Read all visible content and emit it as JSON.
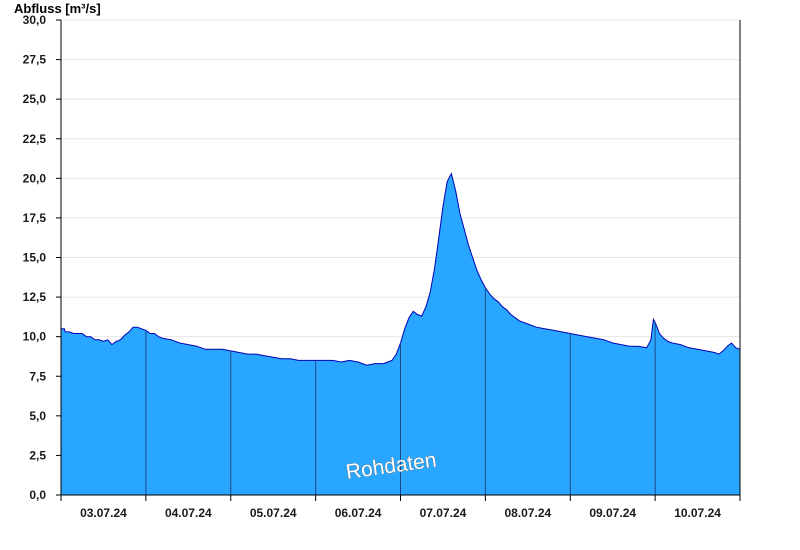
{
  "chart_data": {
    "type": "area",
    "ylabel": "Abfluss [m³/s]",
    "watermark": "Rohdaten",
    "ylim": [
      0,
      30
    ],
    "y_ticks": [
      "0,0",
      "2,5",
      "5,0",
      "7,5",
      "10,0",
      "12,5",
      "15,0",
      "17,5",
      "20,0",
      "22,5",
      "25,0",
      "27,5",
      "30,0"
    ],
    "x_range_days": [
      0,
      8
    ],
    "x_tick_labels": [
      "03.07.24",
      "04.07.24",
      "05.07.24",
      "06.07.24",
      "07.07.24",
      "08.07.24",
      "09.07.24",
      "10.07.24"
    ],
    "grid": true,
    "colors": {
      "fill": "#29a6ff",
      "line": "#0000b4",
      "grid": "#e6e6e6",
      "day_separator": "#1a4a8a"
    },
    "series": [
      {
        "x": [
          0.0,
          0.04,
          0.05,
          0.1,
          0.15,
          0.2,
          0.25,
          0.3,
          0.35,
          0.4,
          0.45,
          0.5,
          0.55,
          0.6,
          0.65,
          0.7,
          0.75,
          0.8,
          0.85,
          0.9,
          0.95,
          1.0,
          1.05,
          1.1,
          1.15,
          1.2,
          1.3,
          1.4,
          1.5,
          1.6,
          1.7,
          1.8,
          1.9,
          2.0,
          2.1,
          2.2,
          2.3,
          2.4,
          2.5,
          2.6,
          2.7,
          2.8,
          2.9,
          3.0,
          3.1,
          3.2,
          3.3,
          3.4,
          3.5,
          3.55,
          3.6,
          3.7,
          3.8,
          3.9,
          3.95,
          4.0,
          4.05,
          4.1,
          4.15,
          4.2,
          4.25,
          4.3,
          4.35,
          4.4,
          4.45,
          4.5,
          4.55,
          4.6,
          4.65,
          4.7,
          4.75,
          4.8,
          4.85,
          4.9,
          4.95,
          5.0,
          5.05,
          5.1,
          5.15,
          5.2,
          5.25,
          5.3,
          5.35,
          5.4,
          5.5,
          5.6,
          5.7,
          5.8,
          5.9,
          6.0,
          6.1,
          6.2,
          6.3,
          6.4,
          6.5,
          6.6,
          6.7,
          6.8,
          6.9,
          6.95,
          6.98,
          7.0,
          7.03,
          7.05,
          7.1,
          7.15,
          7.2,
          7.3,
          7.4,
          7.5,
          7.6,
          7.7,
          7.75,
          7.8,
          7.85,
          7.9,
          7.95,
          8.0
        ],
        "y": [
          10.5,
          10.5,
          10.3,
          10.3,
          10.2,
          10.2,
          10.2,
          10.0,
          10.0,
          9.8,
          9.8,
          9.7,
          9.8,
          9.5,
          9.7,
          9.8,
          10.1,
          10.3,
          10.6,
          10.6,
          10.5,
          10.4,
          10.2,
          10.2,
          10.0,
          9.9,
          9.8,
          9.6,
          9.5,
          9.4,
          9.2,
          9.2,
          9.2,
          9.1,
          9.0,
          8.9,
          8.9,
          8.8,
          8.7,
          8.6,
          8.6,
          8.5,
          8.5,
          8.5,
          8.5,
          8.5,
          8.4,
          8.5,
          8.4,
          8.3,
          8.2,
          8.3,
          8.3,
          8.5,
          8.9,
          9.6,
          10.5,
          11.2,
          11.6,
          11.4,
          11.3,
          11.9,
          12.8,
          14.3,
          16.2,
          18.2,
          19.8,
          20.3,
          19.2,
          17.8,
          16.8,
          15.8,
          15.0,
          14.2,
          13.6,
          13.1,
          12.7,
          12.4,
          12.2,
          11.9,
          11.7,
          11.4,
          11.2,
          11.0,
          10.8,
          10.6,
          10.5,
          10.4,
          10.3,
          10.2,
          10.1,
          10.0,
          9.9,
          9.8,
          9.6,
          9.5,
          9.4,
          9.4,
          9.3,
          9.8,
          11.1,
          10.9,
          10.5,
          10.2,
          9.9,
          9.7,
          9.6,
          9.5,
          9.3,
          9.2,
          9.1,
          9.0,
          8.9,
          9.1,
          9.4,
          9.6,
          9.3,
          9.2
        ]
      }
    ]
  }
}
